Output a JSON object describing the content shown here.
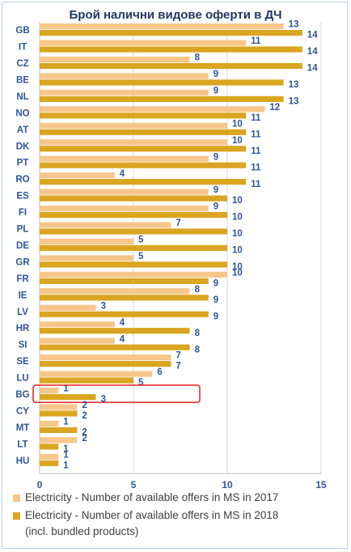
{
  "chart_data": {
    "type": "bar",
    "orientation": "horizontal",
    "title": "Брой налични видове оферти в ДЧ",
    "categories": [
      "GB",
      "IT",
      "CZ",
      "BE",
      "NL",
      "NO",
      "AT",
      "DK",
      "PT",
      "RO",
      "ES",
      "FI",
      "PL",
      "DE",
      "GR",
      "FR",
      "IE",
      "LV",
      "HR",
      "SI",
      "SE",
      "LU",
      "BG",
      "CY",
      "MT",
      "LT",
      "HU"
    ],
    "series": [
      {
        "name": "Electricity - Number of available offers in MS in 2017",
        "color": "#f7c68a",
        "values": [
          13,
          11,
          8,
          9,
          9,
          12,
          10,
          10,
          9,
          4,
          9,
          9,
          7,
          5,
          5,
          10,
          8,
          3,
          4,
          4,
          7,
          6,
          1,
          2,
          1,
          2,
          1
        ]
      },
      {
        "name": "Electricity - Number of available offers in MS in 2018\n(incl. bundled products)",
        "color": "#daa520",
        "values": [
          14,
          14,
          14,
          13,
          13,
          11,
          11,
          11,
          11,
          11,
          10,
          10,
          10,
          10,
          10,
          9,
          9,
          9,
          8,
          8,
          7,
          5,
          3,
          2,
          2,
          1,
          1
        ]
      }
    ],
    "xlim": [
      0,
      15
    ],
    "xticks": [
      "0",
      "5",
      "10",
      "15"
    ],
    "highlight_category": "BG",
    "highlight_color": "#e0201a",
    "label_color": "#2e5597",
    "grid": true,
    "legend_position": "bottom"
  },
  "legend": {
    "items": [
      {
        "label": "Electricity - Number of available offers in MS in 2017",
        "color": "#f7c68a"
      },
      {
        "label": "Electricity - Number of available offers in MS in 2018",
        "label2": "(incl. bundled products)",
        "color": "#daa520"
      }
    ]
  }
}
